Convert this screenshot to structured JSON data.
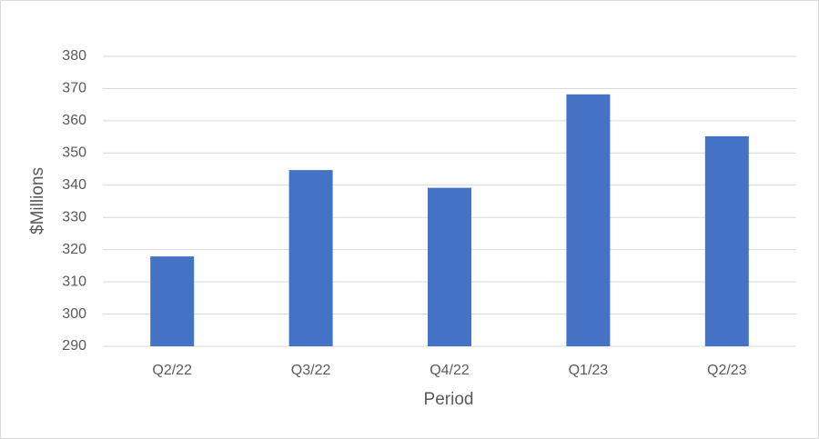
{
  "chart_data": {
    "type": "bar",
    "x_label": "Period",
    "y_label": "$Millions",
    "categories": [
      "Q2/22",
      "Q3/22",
      "Q4/22",
      "Q1/23",
      "Q2/23"
    ],
    "values": [
      317.9,
      344.7,
      339.2,
      368.2,
      355.2
    ],
    "color": "#4472c4",
    "ylim": [
      290,
      380
    ],
    "yticks": [
      290,
      300,
      310,
      320,
      330,
      340,
      350,
      360,
      370,
      380
    ],
    "grid": true
  }
}
